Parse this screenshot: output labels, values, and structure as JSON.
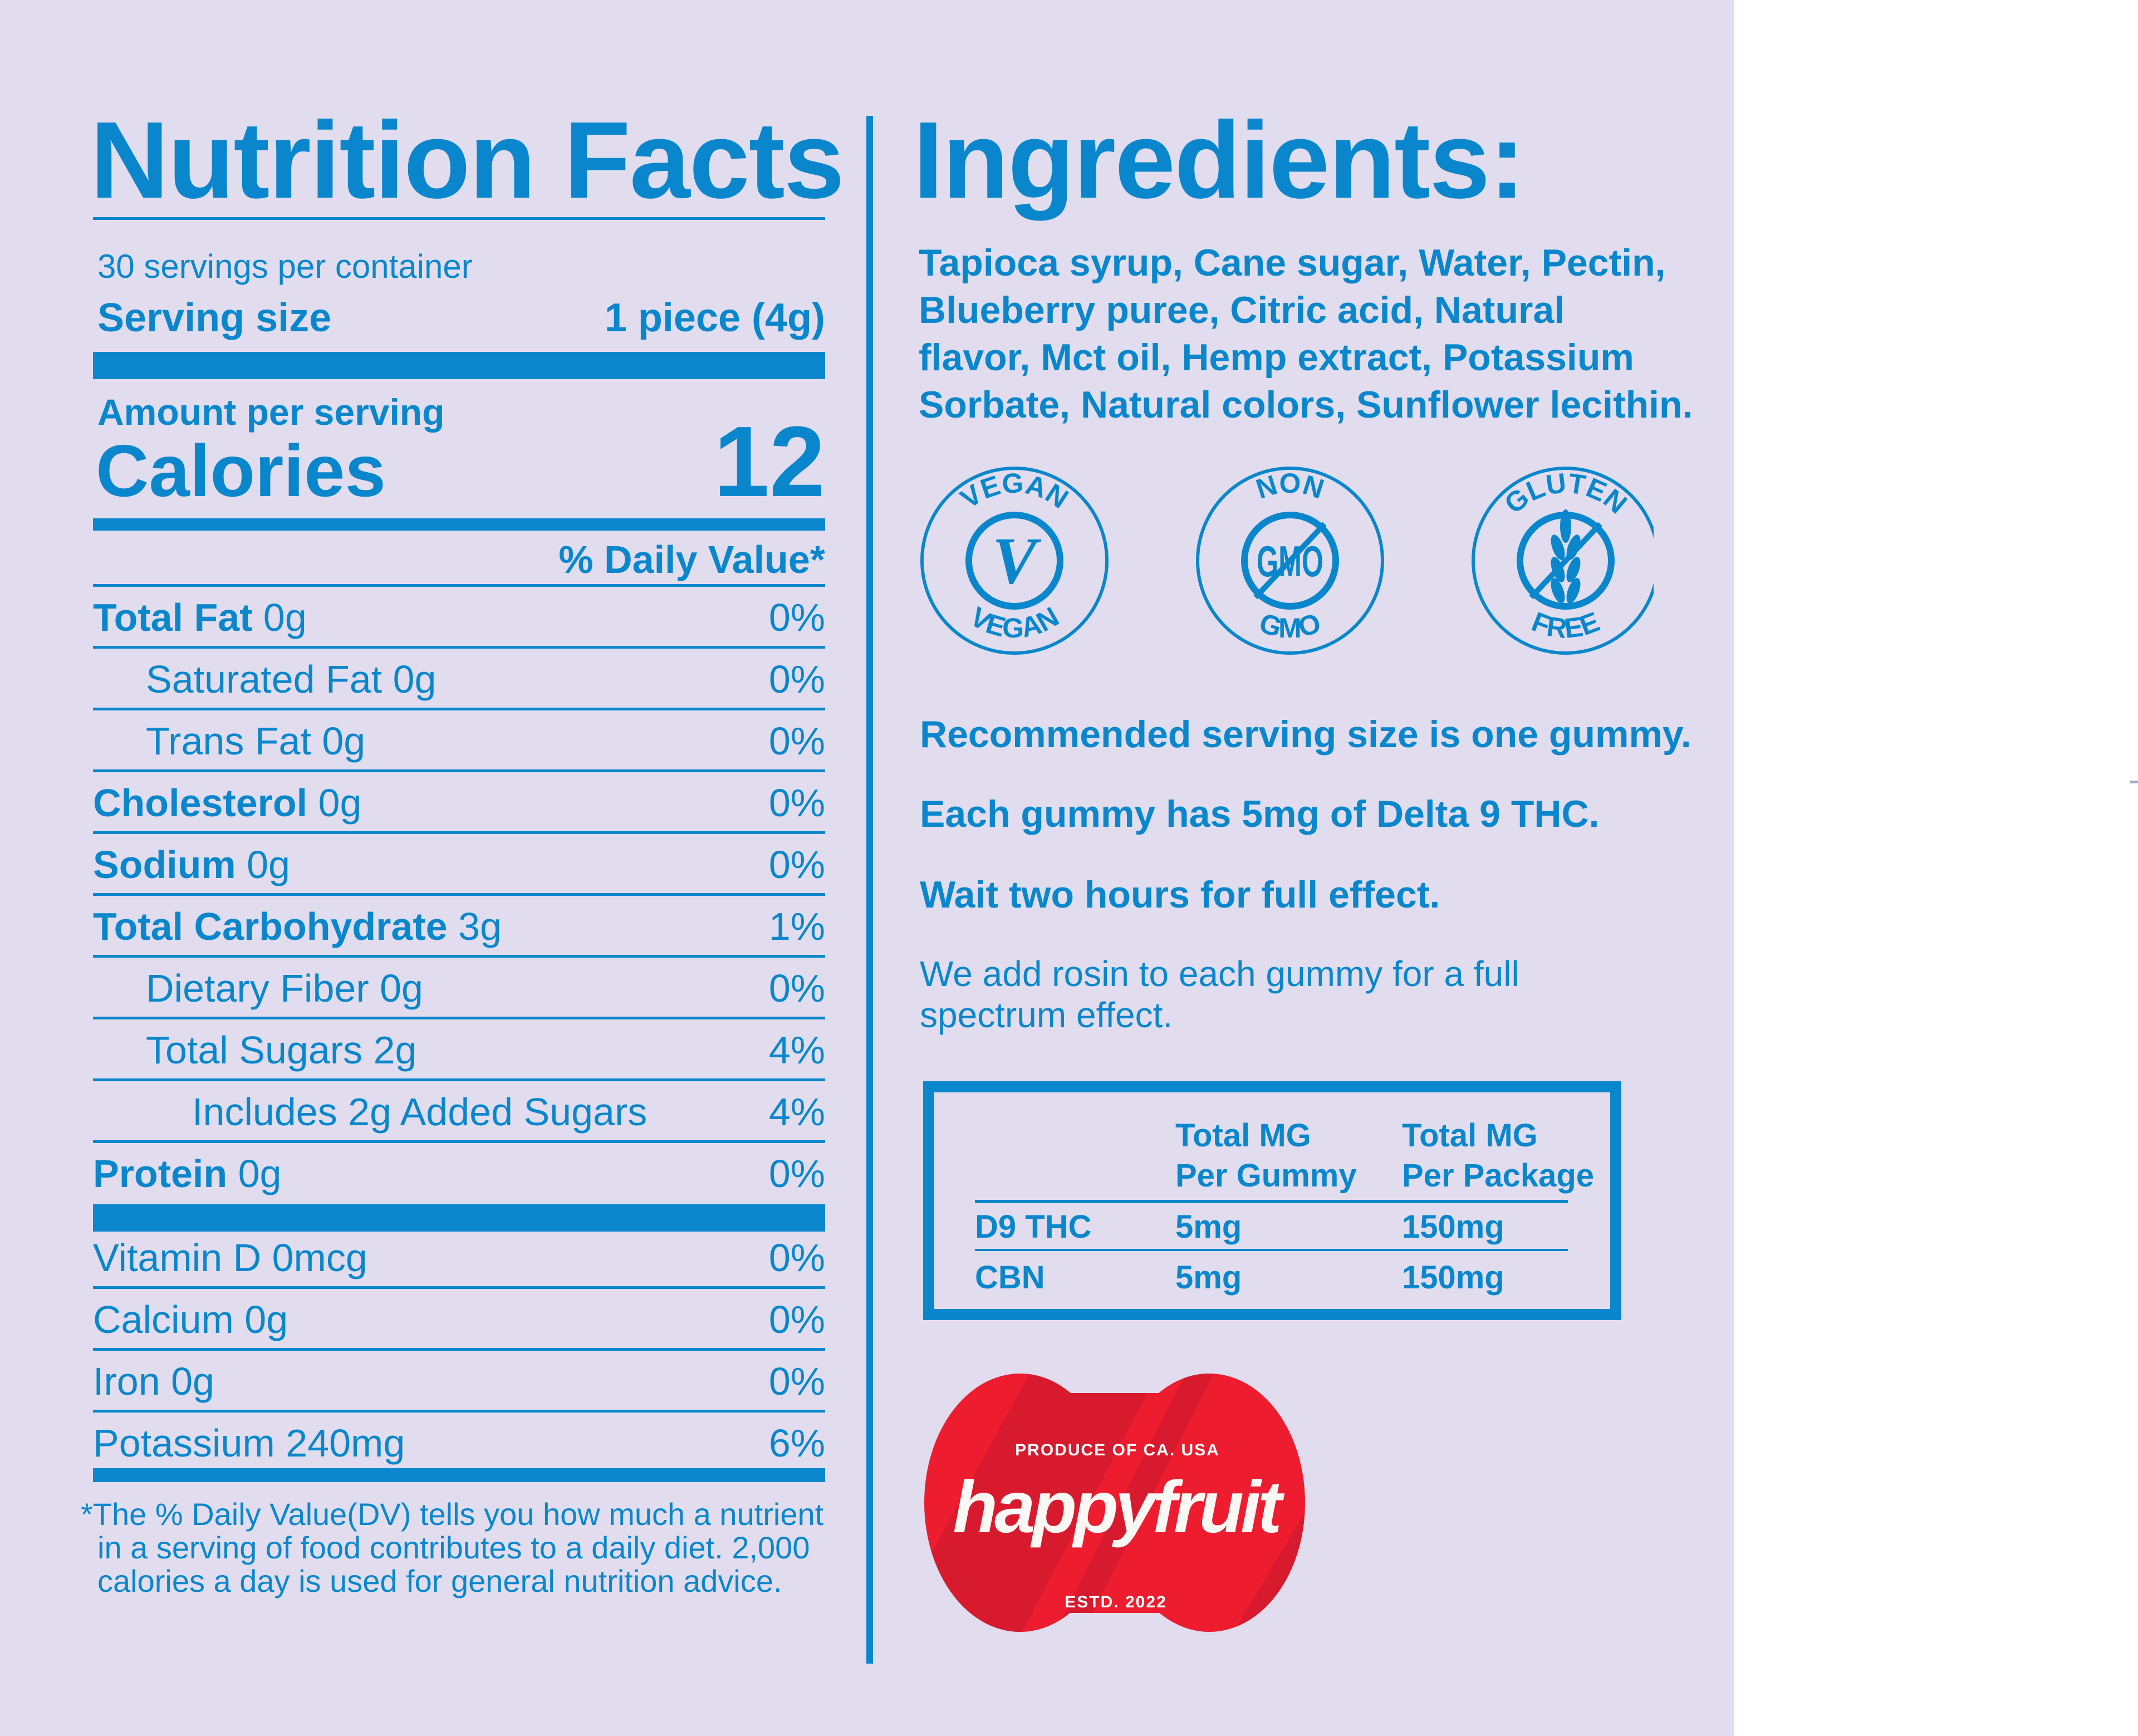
{
  "colors": {
    "accent": "#0a87cc",
    "background": "#e1ddee",
    "logo_red": "#ed1c2e",
    "logo_red_dark": "#d71a2d"
  },
  "nutrition": {
    "title": "Nutrition Facts",
    "servings": "30 servings per container",
    "serving_size_label": "Serving size",
    "serving_size_value": "1 piece (4g)",
    "amount_per_serving": "Amount per serving",
    "calories_label": "Calories",
    "calories_value": "12",
    "dv_header": "% Daily Value*",
    "rows": [
      {
        "name": "Total Fat",
        "amount": "0g",
        "dv": "0%",
        "bold": true,
        "indent": 0
      },
      {
        "name": "Saturated Fat",
        "amount": "0g",
        "dv": "0%",
        "bold": false,
        "indent": 1
      },
      {
        "name": "Trans Fat",
        "amount": "0g",
        "dv": "0%",
        "bold": false,
        "indent": 1
      },
      {
        "name": "Cholesterol",
        "amount": "0g",
        "dv": "0%",
        "bold": true,
        "indent": 0
      },
      {
        "name": "Sodium",
        "amount": "0g",
        "dv": "0%",
        "bold": true,
        "indent": 0
      },
      {
        "name": "Total Carbohydrate",
        "amount": "3g",
        "dv": "1%",
        "bold": true,
        "indent": 0
      },
      {
        "name": "Dietary Fiber",
        "amount": "0g",
        "dv": "0%",
        "bold": false,
        "indent": 1
      },
      {
        "name": "Total Sugars ",
        "amount": "2g",
        "dv": "4%",
        "bold": false,
        "indent": 1
      },
      {
        "name": "Includes 2g Added Sugars",
        "amount": "",
        "dv": "4%",
        "bold": false,
        "indent": 2
      },
      {
        "name": "Protein",
        "amount": "0g",
        "dv": "0%",
        "bold": true,
        "indent": 0
      }
    ],
    "vitamins": [
      {
        "name": "Vitamin D",
        "amount": "0mcg",
        "dv": "0%"
      },
      {
        "name": "Calcium",
        "amount": "0g",
        "dv": "0%"
      },
      {
        "name": "Iron",
        "amount": "0g",
        "dv": "0%"
      },
      {
        "name": "Potassium",
        "amount": "240mg",
        "dv": "6%"
      }
    ],
    "footnote": [
      "*The % Daily Value(DV) tells you how much a nutrient",
      "in a serving of food contributes to a daily diet. 2,000",
      "calories a day is used for general nutrition advice."
    ]
  },
  "ingredients": {
    "title": "Ingredients:",
    "lines": [
      "Tapioca syrup, Cane sugar, Water, Pectin,",
      "Blueberry puree, Citric acid, Natural",
      "flavor, Mct oil, Hemp extract, Potassium",
      "Sorbate, Natural colors, Sunflower lecithin."
    ]
  },
  "badges": [
    {
      "icon": "vegan-icon",
      "top": "VEGAN",
      "bottom": "VEGAN",
      "center": "V"
    },
    {
      "icon": "non-gmo-icon",
      "top": "NON",
      "bottom": "GMO",
      "center": "GMO"
    },
    {
      "icon": "gluten-free-icon",
      "top": "GLUTEN",
      "bottom": "FREE",
      "center": ""
    }
  ],
  "notes": {
    "rec1": "Recommended serving size is one gummy.",
    "rec2": "Each gummy has 5mg of Delta 9 THC.",
    "rec3": "Wait two hours for full effect.",
    "rosin1": "We add rosin to each gummy for a full",
    "rosin2": "spectrum effect."
  },
  "potency_table": {
    "headers": [
      [
        "Total MG",
        "Per Gummy"
      ],
      [
        "Total MG",
        "Per Package"
      ]
    ],
    "rows": [
      {
        "label": "D9 THC",
        "per_gummy": "5mg",
        "per_package": "150mg"
      },
      {
        "label": "CBN",
        "per_gummy": "5mg",
        "per_package": "150mg"
      }
    ]
  },
  "logo": {
    "top": "PRODUCE OF CA. USA",
    "brand": "happyfruit",
    "bottom": "ESTD. 2022"
  }
}
